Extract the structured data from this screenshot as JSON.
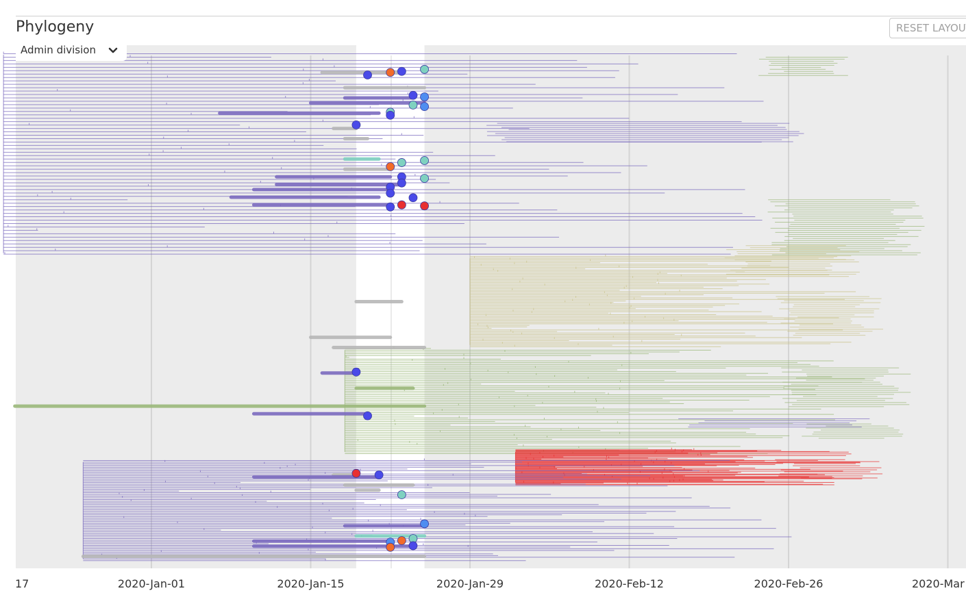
{
  "header": {
    "title": "Phylogeny",
    "reset_label": "RESET LAYOUT",
    "color_by": "Admin division"
  },
  "icons": {
    "dropdown": "chevron-down-icon"
  },
  "colors": {
    "background_panel": "#ececec",
    "selected_window": "#ffffff",
    "gridline": "#d4d4d4",
    "purple": "#7b6bbf",
    "blue": "#4a4ae8",
    "lightblue": "#4f8df0",
    "teal": "#7fd1c0",
    "gray": "#b7b7b7",
    "green": "#9bb87a",
    "orange": "#f26b2a",
    "red": "#e83030",
    "olive": "#c9c38a"
  },
  "chart_data": {
    "type": "phylogenetic-tree",
    "x_axis": {
      "type": "date",
      "ticks": [
        "17",
        "2020-Jan-01",
        "2020-Jan-15",
        "2020-Jan-29",
        "2020-Feb-12",
        "2020-Feb-26",
        "2020-Mar"
      ],
      "tick_dates": [
        "2019-12-17",
        "2020-01-01",
        "2020-01-15",
        "2020-01-29",
        "2020-02-12",
        "2020-02-26",
        "2020-03-11"
      ],
      "grid": true
    },
    "selected_date_range": [
      "2020-01-19",
      "2020-01-25"
    ],
    "tip_markers": [
      {
        "date": "2020-01-25",
        "row": 0.034,
        "color": "teal"
      },
      {
        "date": "2020-01-23",
        "row": 0.038,
        "color": "blue"
      },
      {
        "date": "2020-01-22",
        "row": 0.04,
        "color": "orange"
      },
      {
        "date": "2020-01-20",
        "row": 0.045,
        "color": "blue"
      },
      {
        "date": "2020-01-24",
        "row": 0.085,
        "color": "blue"
      },
      {
        "date": "2020-01-25",
        "row": 0.088,
        "color": "lightblue"
      },
      {
        "date": "2020-01-24",
        "row": 0.104,
        "color": "teal"
      },
      {
        "date": "2020-01-25",
        "row": 0.107,
        "color": "lightblue"
      },
      {
        "date": "2020-01-22",
        "row": 0.118,
        "color": "teal"
      },
      {
        "date": "2020-01-22",
        "row": 0.124,
        "color": "blue"
      },
      {
        "date": "2020-01-19",
        "row": 0.143,
        "color": "blue"
      },
      {
        "date": "2020-01-25",
        "row": 0.213,
        "color": "teal"
      },
      {
        "date": "2020-01-23",
        "row": 0.217,
        "color": "teal"
      },
      {
        "date": "2020-01-22",
        "row": 0.225,
        "color": "orange"
      },
      {
        "date": "2020-01-23",
        "row": 0.245,
        "color": "blue"
      },
      {
        "date": "2020-01-25",
        "row": 0.248,
        "color": "teal"
      },
      {
        "date": "2020-01-23",
        "row": 0.257,
        "color": "blue"
      },
      {
        "date": "2020-01-22",
        "row": 0.265,
        "color": "blue"
      },
      {
        "date": "2020-01-22",
        "row": 0.277,
        "color": "blue"
      },
      {
        "date": "2020-01-24",
        "row": 0.286,
        "color": "blue"
      },
      {
        "date": "2020-01-23",
        "row": 0.3,
        "color": "red"
      },
      {
        "date": "2020-01-25",
        "row": 0.302,
        "color": "red"
      },
      {
        "date": "2020-01-22",
        "row": 0.304,
        "color": "blue"
      },
      {
        "date": "2020-01-19",
        "row": 0.628,
        "color": "blue"
      },
      {
        "date": "2020-01-20",
        "row": 0.714,
        "color": "blue"
      },
      {
        "date": "2020-01-19",
        "row": 0.827,
        "color": "red"
      },
      {
        "date": "2020-01-21",
        "row": 0.83,
        "color": "blue"
      },
      {
        "date": "2020-01-23",
        "row": 0.869,
        "color": "teal"
      },
      {
        "date": "2020-01-25",
        "row": 0.926,
        "color": "lightblue"
      },
      {
        "date": "2020-01-24",
        "row": 0.955,
        "color": "teal"
      },
      {
        "date": "2020-01-23",
        "row": 0.959,
        "color": "orange"
      },
      {
        "date": "2020-01-22",
        "row": 0.962,
        "color": "lightblue"
      },
      {
        "date": "2020-01-24",
        "row": 0.969,
        "color": "blue"
      },
      {
        "date": "2020-01-22",
        "row": 0.972,
        "color": "orange"
      }
    ],
    "clades": [
      {
        "color": "purple",
        "root_date": "2019-12-19",
        "root_row": 0.05,
        "row_range": [
          0.0,
          0.4
        ],
        "tips_until": "2020-02-27"
      },
      {
        "color": "olive",
        "root_date": "2020-01-29",
        "row_range": [
          0.4,
          0.58
        ],
        "tips_until": "2020-03-03"
      },
      {
        "color": "green",
        "root_date": "2020-01-18",
        "row_range": [
          0.58,
          0.79
        ],
        "tips_until": "2020-03-04"
      },
      {
        "color": "red",
        "root_date": "2020-02-02",
        "row_range": [
          0.78,
          0.85
        ],
        "tips_until": "2020-03-04"
      },
      {
        "color": "purple",
        "root_date": "2019-12-26",
        "row_range": [
          0.8,
          1.0
        ],
        "tips_until": "2020-02-27"
      }
    ]
  }
}
